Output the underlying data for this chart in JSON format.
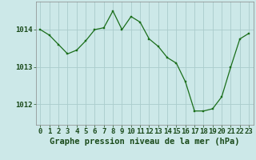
{
  "x": [
    0,
    1,
    2,
    3,
    4,
    5,
    6,
    7,
    8,
    9,
    10,
    11,
    12,
    13,
    14,
    15,
    16,
    17,
    18,
    19,
    20,
    21,
    22,
    23
  ],
  "y": [
    1014.0,
    1013.85,
    1013.6,
    1013.35,
    1013.45,
    1013.7,
    1014.0,
    1014.05,
    1014.5,
    1014.0,
    1014.35,
    1014.2,
    1013.75,
    1013.55,
    1013.25,
    1013.1,
    1012.6,
    1011.82,
    1011.82,
    1011.88,
    1012.2,
    1013.0,
    1013.75,
    1013.9
  ],
  "line_color": "#1a6e1a",
  "marker_color": "#1a6e1a",
  "bg_color": "#cce8e8",
  "grid_color": "#aacccc",
  "title": "Graphe pression niveau de la mer (hPa)",
  "ylim": [
    1011.45,
    1014.75
  ],
  "yticks": [
    1012,
    1013,
    1014
  ],
  "xtick_labels": [
    "0",
    "1",
    "2",
    "3",
    "4",
    "5",
    "6",
    "7",
    "8",
    "9",
    "10",
    "11",
    "12",
    "13",
    "14",
    "15",
    "16",
    "17",
    "18",
    "19",
    "20",
    "21",
    "22",
    "23"
  ],
  "title_fontsize": 7.5,
  "tick_fontsize": 6.5,
  "title_color": "#1a4a1a",
  "tick_color": "#1a4a1a",
  "spine_color": "#888888"
}
